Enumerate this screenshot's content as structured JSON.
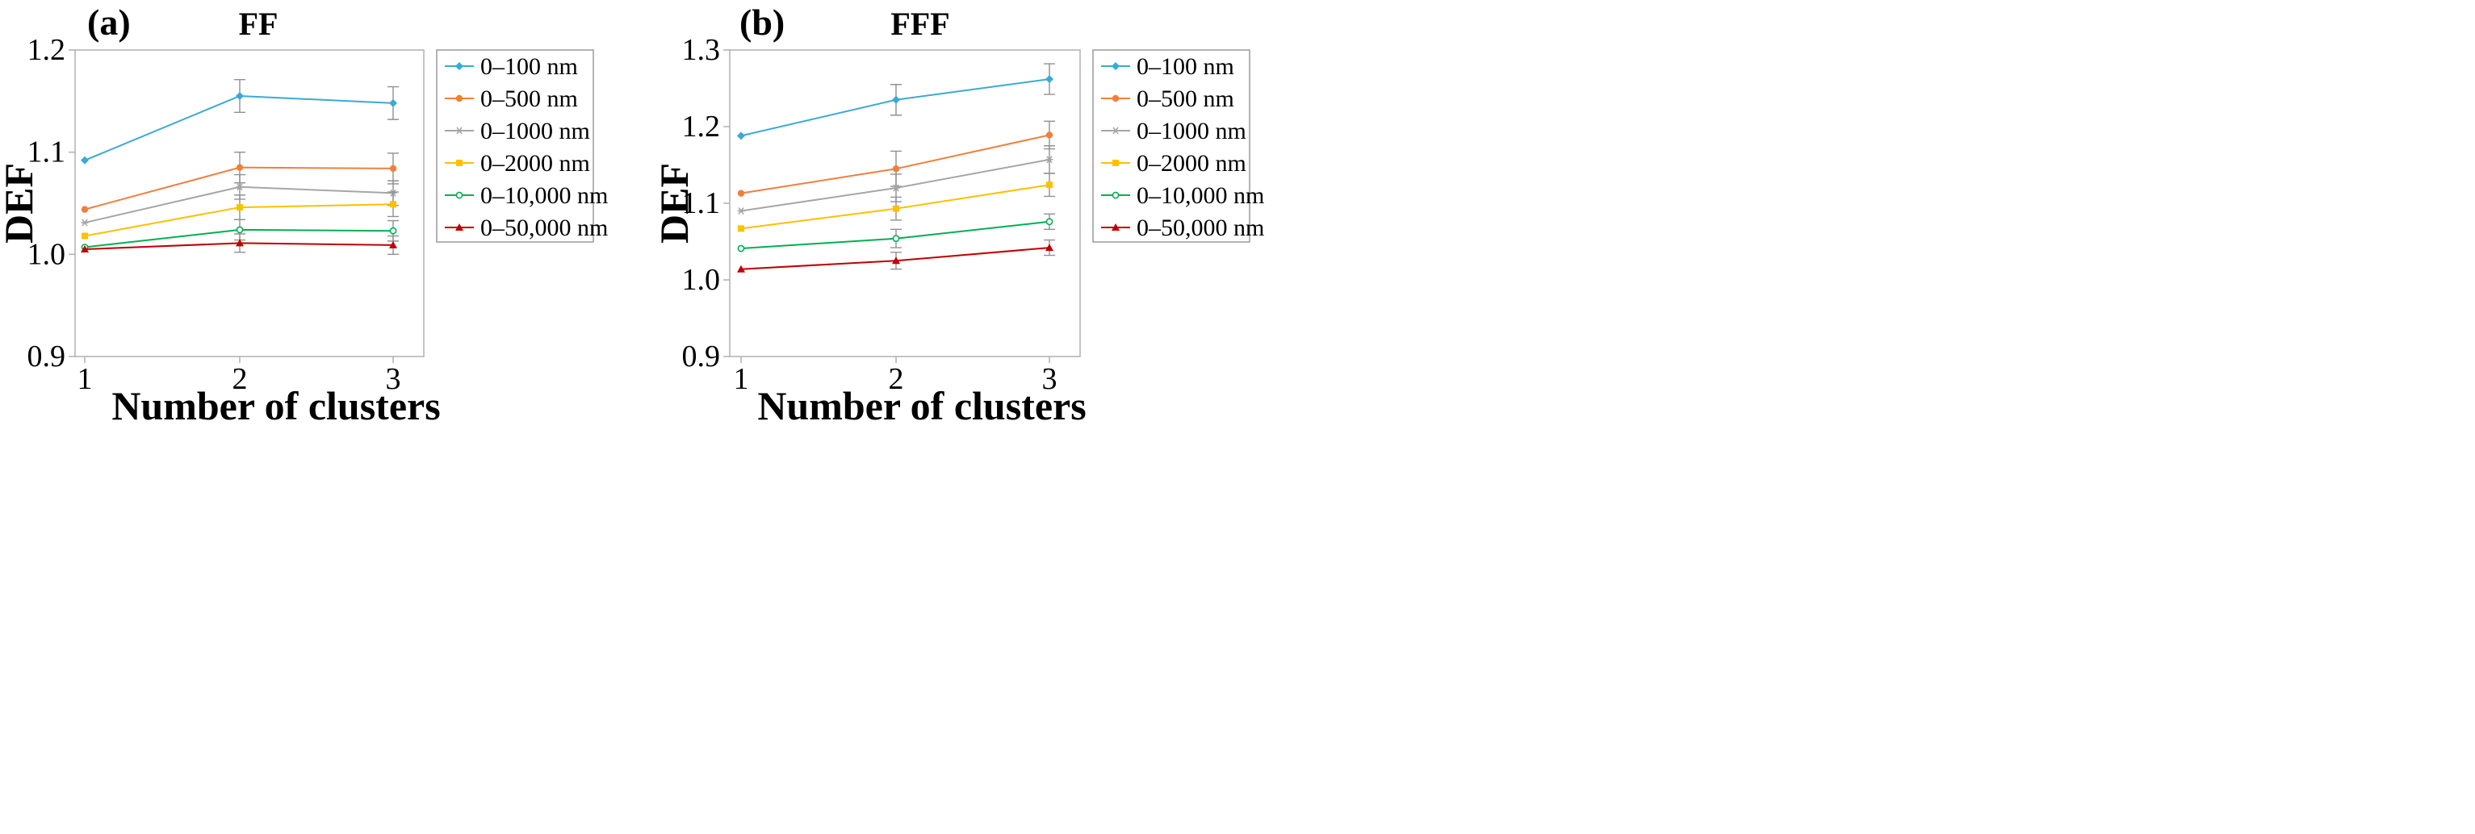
{
  "figure": {
    "panels": [
      "(a)",
      "(b)"
    ]
  },
  "colors": {
    "axis": "#b0b0b0",
    "error_bar": "#909090",
    "legend_border": "#9a9a9a"
  },
  "chart_data": [
    {
      "type": "line",
      "panel_label": "(a)",
      "title": "FF",
      "xlabel": "Number of clusters",
      "ylabel": "DEF",
      "x": [
        1,
        2,
        3
      ],
      "x_tick_labels": [
        "1",
        "2",
        "3"
      ],
      "ylim": [
        0.9,
        1.2
      ],
      "y_tick_values": [
        0.9,
        1.0,
        1.1,
        1.2
      ],
      "y_tick_labels": [
        "0.9",
        "1.0",
        "1.1",
        "1.2"
      ],
      "grid": false,
      "legend_position": "right",
      "series": [
        {
          "name": "0–100  nm",
          "color": "#3ba9d6",
          "marker": "diamond",
          "values": [
            1.092,
            1.155,
            1.148
          ],
          "errors": [
            0.0,
            0.016,
            0.016
          ]
        },
        {
          "name": "0–500  nm",
          "color": "#f07f3c",
          "marker": "circle",
          "values": [
            1.044,
            1.085,
            1.084
          ],
          "errors": [
            0.0,
            0.015,
            0.015
          ]
        },
        {
          "name": "0–1000  nm",
          "color": "#a6a6a6",
          "marker": "star",
          "values": [
            1.031,
            1.066,
            1.06
          ],
          "errors": [
            0.0,
            0.012,
            0.012
          ]
        },
        {
          "name": "0–2000  nm",
          "color": "#ffc000",
          "marker": "square",
          "values": [
            1.018,
            1.046,
            1.049
          ],
          "errors": [
            0.0,
            0.012,
            0.012
          ]
        },
        {
          "name": "0–10,000  nm",
          "color": "#00b050",
          "marker": "open-circle",
          "values": [
            1.007,
            1.024,
            1.023
          ],
          "errors": [
            0.0,
            0.01,
            0.01
          ]
        },
        {
          "name": "0–50,000  nm",
          "color": "#c00000",
          "marker": "triangle",
          "values": [
            1.005,
            1.011,
            1.009
          ],
          "errors": [
            0.0,
            0.009,
            0.009
          ]
        }
      ]
    },
    {
      "type": "line",
      "panel_label": "(b)",
      "title": "FFF",
      "xlabel": "Number of clusters",
      "ylabel": "DEF",
      "x": [
        1,
        2,
        3
      ],
      "x_tick_labels": [
        "1",
        "2",
        "3"
      ],
      "ylim": [
        0.9,
        1.3
      ],
      "y_tick_values": [
        0.9,
        1.0,
        1.1,
        1.2,
        1.3
      ],
      "y_tick_labels": [
        "0.9",
        "1.0",
        "1.1",
        "1.2",
        "1.3"
      ],
      "grid": false,
      "legend_position": "right",
      "series": [
        {
          "name": "0–100  nm",
          "color": "#3ba9d6",
          "marker": "diamond",
          "values": [
            1.188,
            1.235,
            1.262
          ],
          "errors": [
            0.0,
            0.02,
            0.02
          ]
        },
        {
          "name": "0–500  nm",
          "color": "#f07f3c",
          "marker": "circle",
          "values": [
            1.113,
            1.145,
            1.189
          ],
          "errors": [
            0.0,
            0.023,
            0.018
          ]
        },
        {
          "name": "0–1000  nm",
          "color": "#a6a6a6",
          "marker": "star",
          "values": [
            1.09,
            1.12,
            1.157
          ],
          "errors": [
            0.0,
            0.018,
            0.018
          ]
        },
        {
          "name": "0–2000  nm",
          "color": "#ffc000",
          "marker": "square",
          "values": [
            1.067,
            1.093,
            1.124
          ],
          "errors": [
            0.0,
            0.015,
            0.015
          ]
        },
        {
          "name": "0–10,000  nm",
          "color": "#00b050",
          "marker": "open-circle",
          "values": [
            1.041,
            1.054,
            1.076
          ],
          "errors": [
            0.0,
            0.012,
            0.01
          ]
        },
        {
          "name": "0–50,000  nm",
          "color": "#c00000",
          "marker": "triangle",
          "values": [
            1.014,
            1.025,
            1.042
          ],
          "errors": [
            0.0,
            0.011,
            0.01
          ]
        }
      ]
    }
  ]
}
